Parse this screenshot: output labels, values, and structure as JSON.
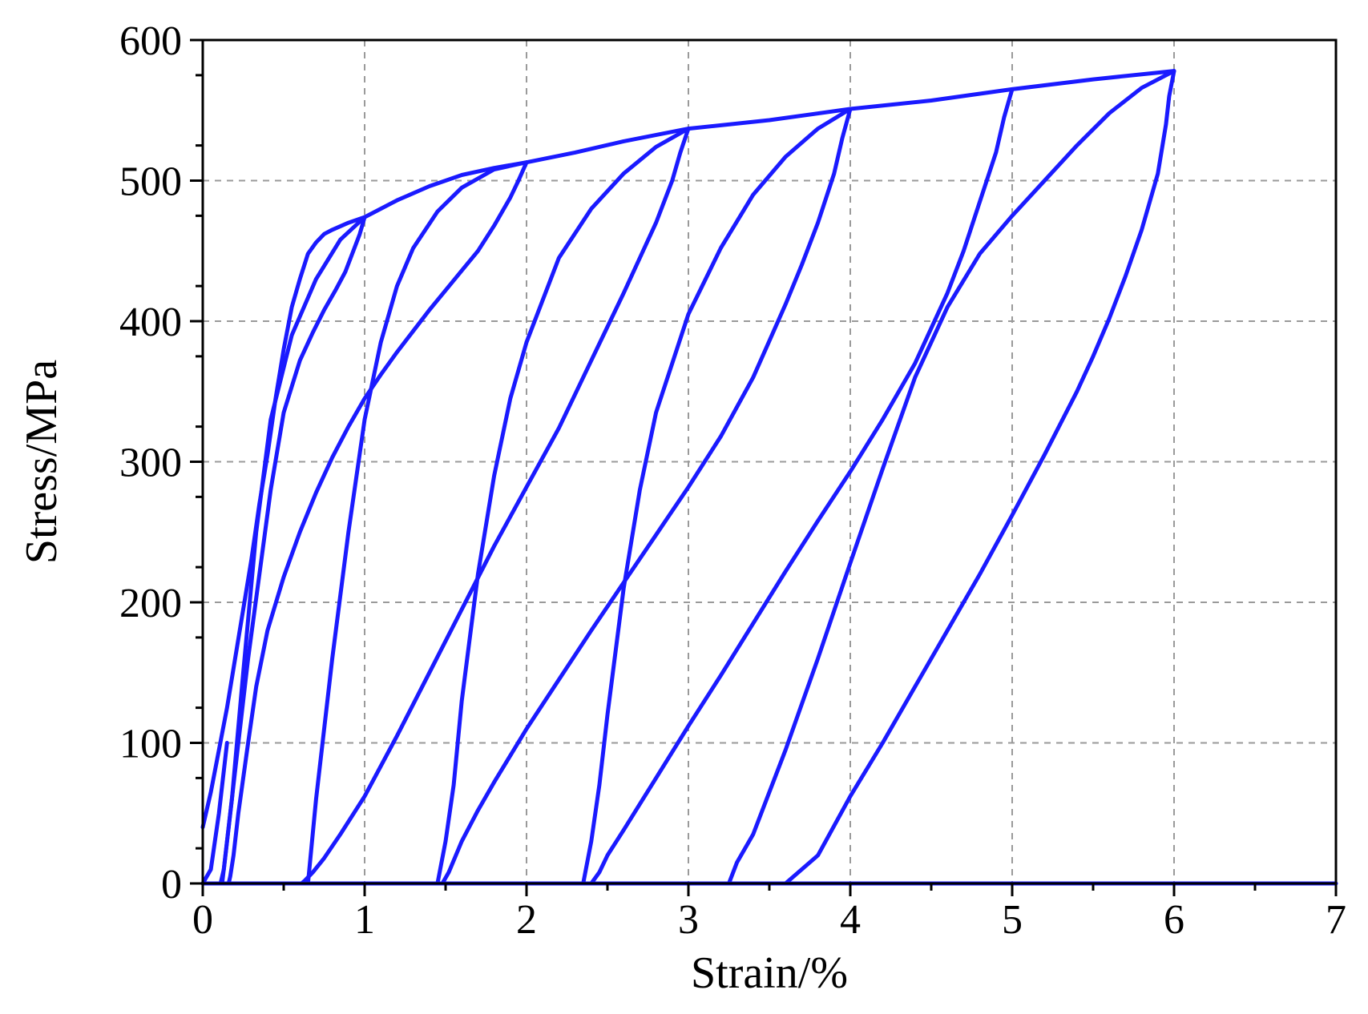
{
  "chart_data": {
    "type": "line",
    "title": "",
    "xlabel": "Strain/%",
    "ylabel": "Stress/MPa",
    "xlim": [
      0,
      7
    ],
    "ylim": [
      0,
      600
    ],
    "xticks": [
      "0",
      "1",
      "2",
      "3",
      "4",
      "5",
      "6",
      "7"
    ],
    "yticks": [
      "0",
      "100",
      "200",
      "300",
      "400",
      "500",
      "600"
    ],
    "grid": true,
    "legend": "none",
    "color": "#1a1aff",
    "series": [
      {
        "x": [
          0,
          0.05,
          0.1,
          0.15,
          0.2,
          0.25,
          0.3,
          0.35,
          0.4,
          0.45,
          0.5,
          0.55,
          0.6,
          0.65,
          0.7,
          0.75,
          0.8,
          0.9,
          1.0,
          1.2,
          1.4,
          1.6,
          1.8,
          2.0,
          2.3,
          2.6,
          3.0,
          3.5,
          4.0,
          4.5,
          5.0,
          5.5,
          6.0
        ],
        "y": [
          40,
          65,
          95,
          125,
          160,
          195,
          230,
          270,
          305,
          345,
          380,
          410,
          430,
          448,
          456,
          462,
          465,
          470,
          474,
          486,
          496,
          504,
          509,
          513,
          520,
          528,
          537,
          543,
          551,
          557,
          565,
          572,
          578
        ]
      },
      {
        "x": [
          1.0,
          0.97,
          0.93,
          0.88,
          0.82,
          0.75,
          0.68,
          0.6,
          0.5,
          0.42,
          0.35,
          0.28,
          0.22,
          0.17,
          0.13,
          0.11,
          0.1
        ],
        "y": [
          474,
          462,
          450,
          435,
          422,
          408,
          392,
          372,
          335,
          280,
          220,
          160,
          100,
          50,
          10,
          0,
          0
        ]
      },
      {
        "x": [
          0.12,
          0.18,
          0.25,
          0.33,
          0.42,
          0.55,
          0.7,
          0.85,
          1.0
        ],
        "y": [
          0,
          60,
          150,
          250,
          330,
          390,
          430,
          458,
          474
        ]
      },
      {
        "x": [
          2.0,
          1.95,
          1.9,
          1.8,
          1.7,
          1.6,
          1.5,
          1.4,
          1.3,
          1.2,
          1.1,
          1.0,
          0.9,
          0.8,
          0.7,
          0.6,
          0.5,
          0.4,
          0.33,
          0.28,
          0.22,
          0.19,
          0.17,
          0.16
        ],
        "y": [
          513,
          500,
          488,
          468,
          450,
          436,
          422,
          408,
          393,
          378,
          362,
          345,
          325,
          303,
          278,
          250,
          218,
          180,
          140,
          100,
          50,
          20,
          5,
          0
        ]
      },
      {
        "x": [
          0.65,
          0.7,
          0.8,
          0.9,
          1.0,
          1.1,
          1.2,
          1.3,
          1.45,
          1.6,
          1.8,
          2.0
        ],
        "y": [
          0,
          60,
          160,
          250,
          330,
          385,
          425,
          452,
          478,
          495,
          508,
          513
        ]
      },
      {
        "x": [
          3.0,
          2.95,
          2.9,
          2.8,
          2.7,
          2.6,
          2.5,
          2.4,
          2.3,
          2.2,
          2.0,
          1.8,
          1.6,
          1.4,
          1.2,
          1.0,
          0.85,
          0.75,
          0.68,
          0.63,
          0.61
        ],
        "y": [
          537,
          520,
          500,
          470,
          445,
          420,
          396,
          372,
          348,
          324,
          282,
          240,
          195,
          150,
          105,
          62,
          35,
          18,
          8,
          2,
          0
        ]
      },
      {
        "x": [
          1.45,
          1.5,
          1.55,
          1.6,
          1.7,
          1.8,
          1.9,
          2.0,
          2.2,
          2.4,
          2.6,
          2.8,
          3.0
        ],
        "y": [
          0,
          30,
          70,
          130,
          220,
          290,
          345,
          385,
          445,
          480,
          505,
          524,
          537
        ]
      },
      {
        "x": [
          4.0,
          3.95,
          3.9,
          3.8,
          3.7,
          3.6,
          3.5,
          3.4,
          3.2,
          3.0,
          2.9,
          2.8,
          2.6,
          2.4,
          2.2,
          2.0,
          1.8,
          1.7,
          1.6,
          1.52,
          1.48
        ],
        "y": [
          551,
          530,
          505,
          470,
          440,
          412,
          386,
          360,
          318,
          282,
          265,
          248,
          214,
          180,
          145,
          110,
          72,
          52,
          30,
          8,
          0
        ]
      },
      {
        "x": [
          2.35,
          2.4,
          2.45,
          2.5,
          2.6,
          2.7,
          2.8,
          3.0,
          3.2,
          3.4,
          3.6,
          3.8,
          4.0
        ],
        "y": [
          0,
          30,
          70,
          120,
          210,
          280,
          335,
          405,
          452,
          490,
          517,
          537,
          551
        ]
      },
      {
        "x": [
          5.0,
          4.95,
          4.9,
          4.8,
          4.7,
          4.6,
          4.4,
          4.2,
          4.0,
          3.8,
          3.6,
          3.4,
          3.2,
          3.0,
          2.8,
          2.6,
          2.5,
          2.45,
          2.4
        ],
        "y": [
          565,
          545,
          520,
          485,
          450,
          420,
          370,
          330,
          293,
          258,
          222,
          185,
          148,
          112,
          75,
          38,
          20,
          8,
          0
        ]
      },
      {
        "x": [
          3.25,
          3.3,
          3.4,
          3.6,
          3.8,
          4.0,
          4.2,
          4.4,
          4.6,
          4.8,
          5.0,
          5.2,
          5.4,
          5.6,
          5.8,
          6.0
        ],
        "y": [
          0,
          15,
          35,
          95,
          160,
          228,
          295,
          360,
          410,
          448,
          475,
          500,
          525,
          548,
          566,
          578
        ]
      },
      {
        "x": [
          6.0,
          5.97,
          5.95,
          5.9,
          5.8,
          5.7,
          5.6,
          5.5,
          5.4,
          5.2,
          5.0,
          4.8,
          4.6,
          4.4,
          4.2,
          4.0,
          3.8,
          3.6,
          3.45,
          3.3,
          3.25
        ],
        "y": [
          578,
          560,
          540,
          505,
          465,
          432,
          402,
          375,
          350,
          305,
          262,
          220,
          180,
          140,
          100,
          62,
          20,
          0,
          0,
          0,
          0
        ]
      },
      {
        "x": [
          0,
          0.05,
          0.1,
          0.15
        ],
        "y": [
          0,
          10,
          50,
          100
        ]
      },
      {
        "x": [
          0,
          7
        ],
        "y": [
          0,
          0
        ]
      }
    ]
  }
}
